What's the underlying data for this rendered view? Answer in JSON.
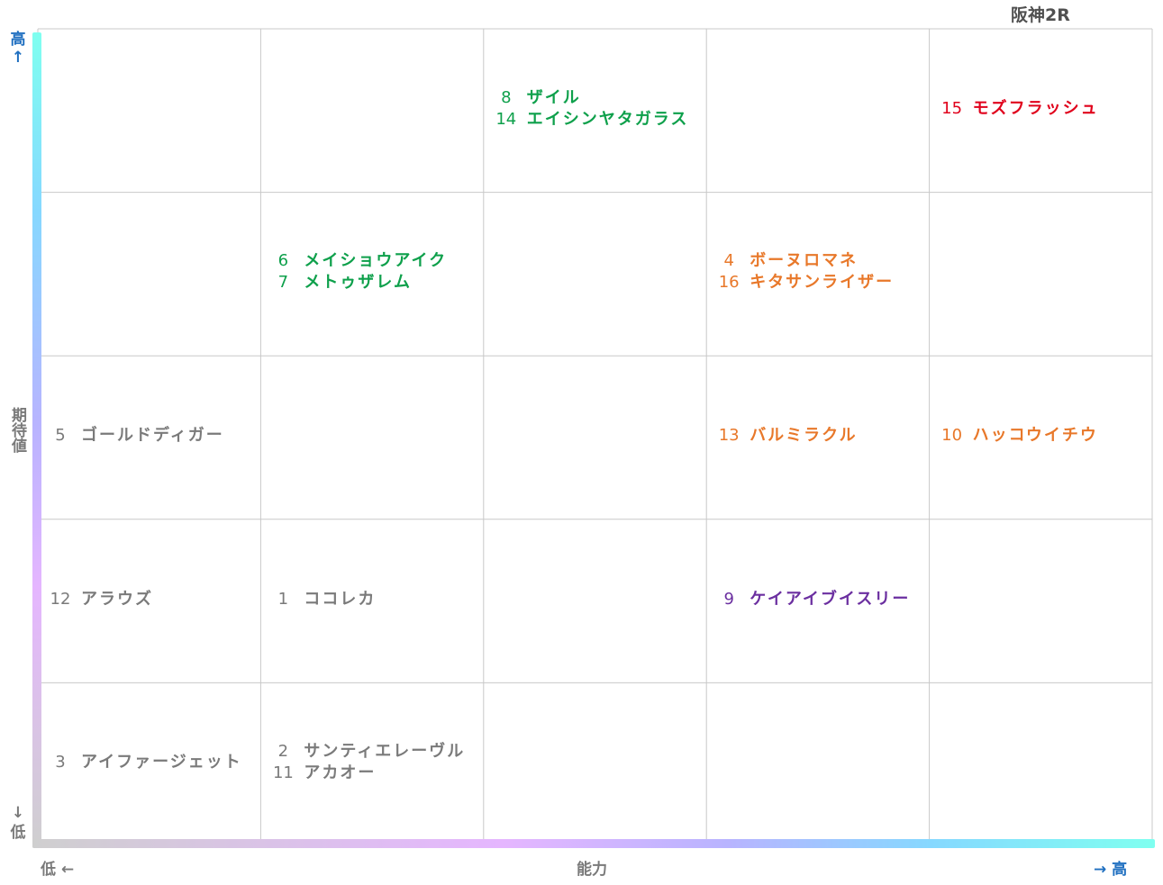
{
  "race_title": "阪神2R",
  "colors": {
    "green": "#0ea04b",
    "orange": "#e8782a",
    "red": "#e0001b",
    "gray": "#7a7a7a",
    "purple": "#6b2fa0",
    "axis_high": "#1f6fc0"
  },
  "chart_data": {
    "type": "table",
    "y_axis": {
      "label": "期待値",
      "high": "高↑",
      "low": "↓低",
      "rows": 5
    },
    "x_axis": {
      "label": "能力",
      "low": "低 ←",
      "high": "→ 高",
      "cols": 5
    },
    "grid": true,
    "cells": [
      {
        "row": 0,
        "col": 2,
        "color": "green",
        "entries": [
          {
            "num": "8",
            "name": "ザイル"
          },
          {
            "num": "14",
            "name": "エイシンヤタガラス"
          }
        ]
      },
      {
        "row": 0,
        "col": 4,
        "color": "red",
        "entries": [
          {
            "num": "15",
            "name": "モズフラッシュ"
          }
        ]
      },
      {
        "row": 1,
        "col": 1,
        "color": "green",
        "entries": [
          {
            "num": "6",
            "name": "メイショウアイク"
          },
          {
            "num": "7",
            "name": "メトゥザレム"
          }
        ]
      },
      {
        "row": 1,
        "col": 3,
        "color": "orange",
        "entries": [
          {
            "num": "4",
            "name": "ボーヌロマネ"
          },
          {
            "num": "16",
            "name": "キタサンライザー"
          }
        ]
      },
      {
        "row": 2,
        "col": 0,
        "color": "gray",
        "entries": [
          {
            "num": "5",
            "name": "ゴールドディガー"
          }
        ]
      },
      {
        "row": 2,
        "col": 3,
        "color": "orange",
        "entries": [
          {
            "num": "13",
            "name": "バルミラクル"
          }
        ]
      },
      {
        "row": 2,
        "col": 4,
        "color": "orange",
        "entries": [
          {
            "num": "10",
            "name": "ハッコウイチウ"
          }
        ]
      },
      {
        "row": 3,
        "col": 0,
        "color": "gray",
        "entries": [
          {
            "num": "12",
            "name": "アラウズ"
          }
        ]
      },
      {
        "row": 3,
        "col": 1,
        "color": "gray",
        "entries": [
          {
            "num": "1",
            "name": "ココレカ"
          }
        ]
      },
      {
        "row": 3,
        "col": 3,
        "color": "purple",
        "entries": [
          {
            "num": "9",
            "name": "ケイアイブイスリー"
          }
        ]
      },
      {
        "row": 4,
        "col": 0,
        "color": "gray",
        "entries": [
          {
            "num": "3",
            "name": "アイファージェット"
          }
        ]
      },
      {
        "row": 4,
        "col": 1,
        "color": "gray",
        "entries": [
          {
            "num": "2",
            "name": "サンティエレーヴル"
          },
          {
            "num": "11",
            "name": "アカオー"
          }
        ]
      }
    ]
  }
}
